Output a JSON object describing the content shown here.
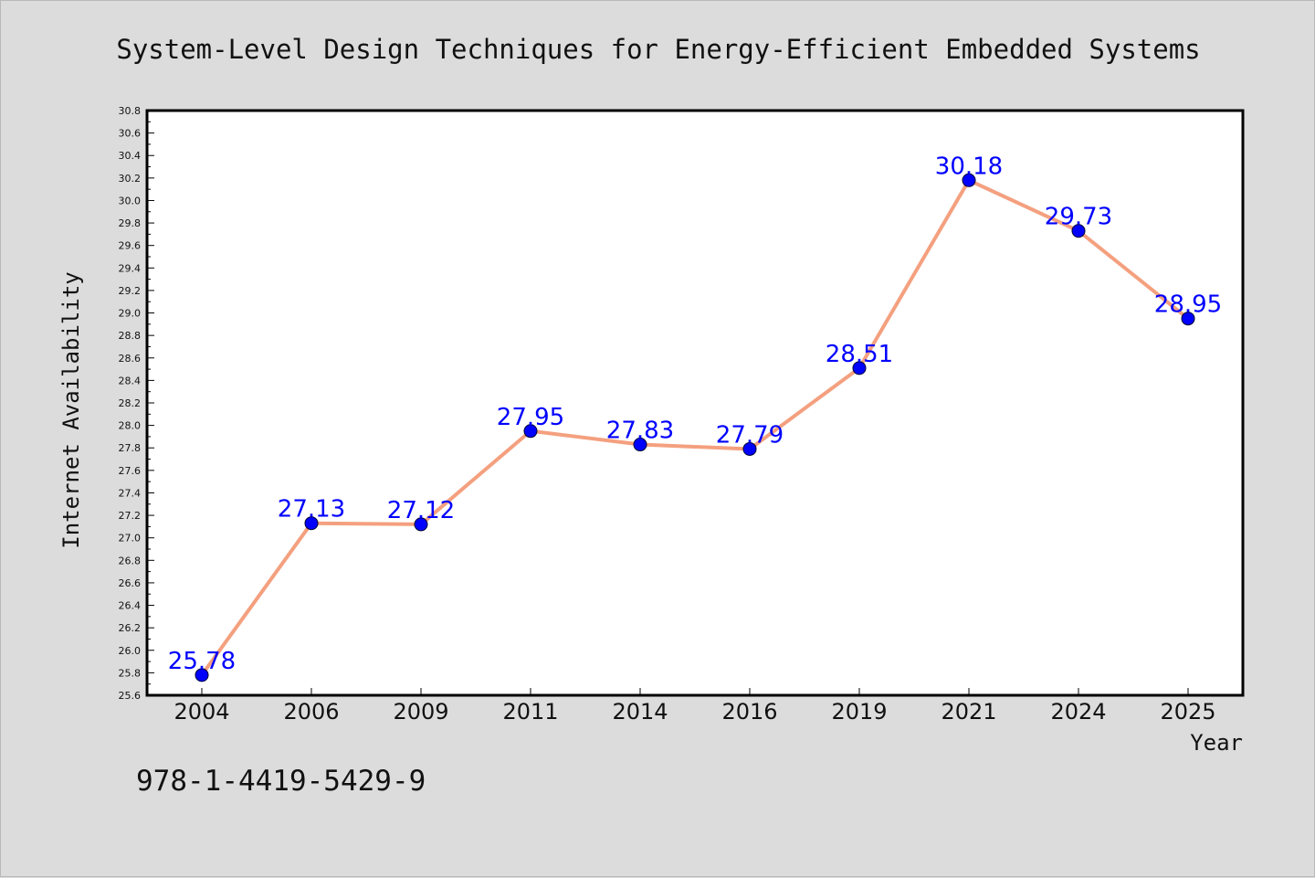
{
  "chart_data": {
    "type": "line",
    "title": "System-Level Design Techniques for Energy-Efficient Embedded Systems",
    "xlabel": "Year",
    "ylabel": "Internet Availability",
    "categories": [
      "2004",
      "2006",
      "2009",
      "2011",
      "2014",
      "2016",
      "2019",
      "2021",
      "2024",
      "2025"
    ],
    "series": [
      {
        "values": [
          25.78,
          27.13,
          27.12,
          27.95,
          27.83,
          27.79,
          28.51,
          30.18,
          29.73,
          28.95
        ]
      }
    ],
    "data_labels": [
      "25.78",
      "27.13",
      "27.12",
      "27.95",
      "27.83",
      "27.79",
      "28.51",
      "30.18",
      "29.73",
      "28.95"
    ],
    "ylim": [
      25.6,
      30.8
    ],
    "ytick_step": 0.2,
    "grid": false,
    "legend": "none"
  },
  "footer": {
    "isbn": "978-1-4419-5429-9"
  },
  "colors": {
    "background": "#dcdcdc",
    "plot_background": "#ffffff",
    "line": "#f4a07f",
    "marker": "#0000ff",
    "data_label": "#0000ff"
  }
}
